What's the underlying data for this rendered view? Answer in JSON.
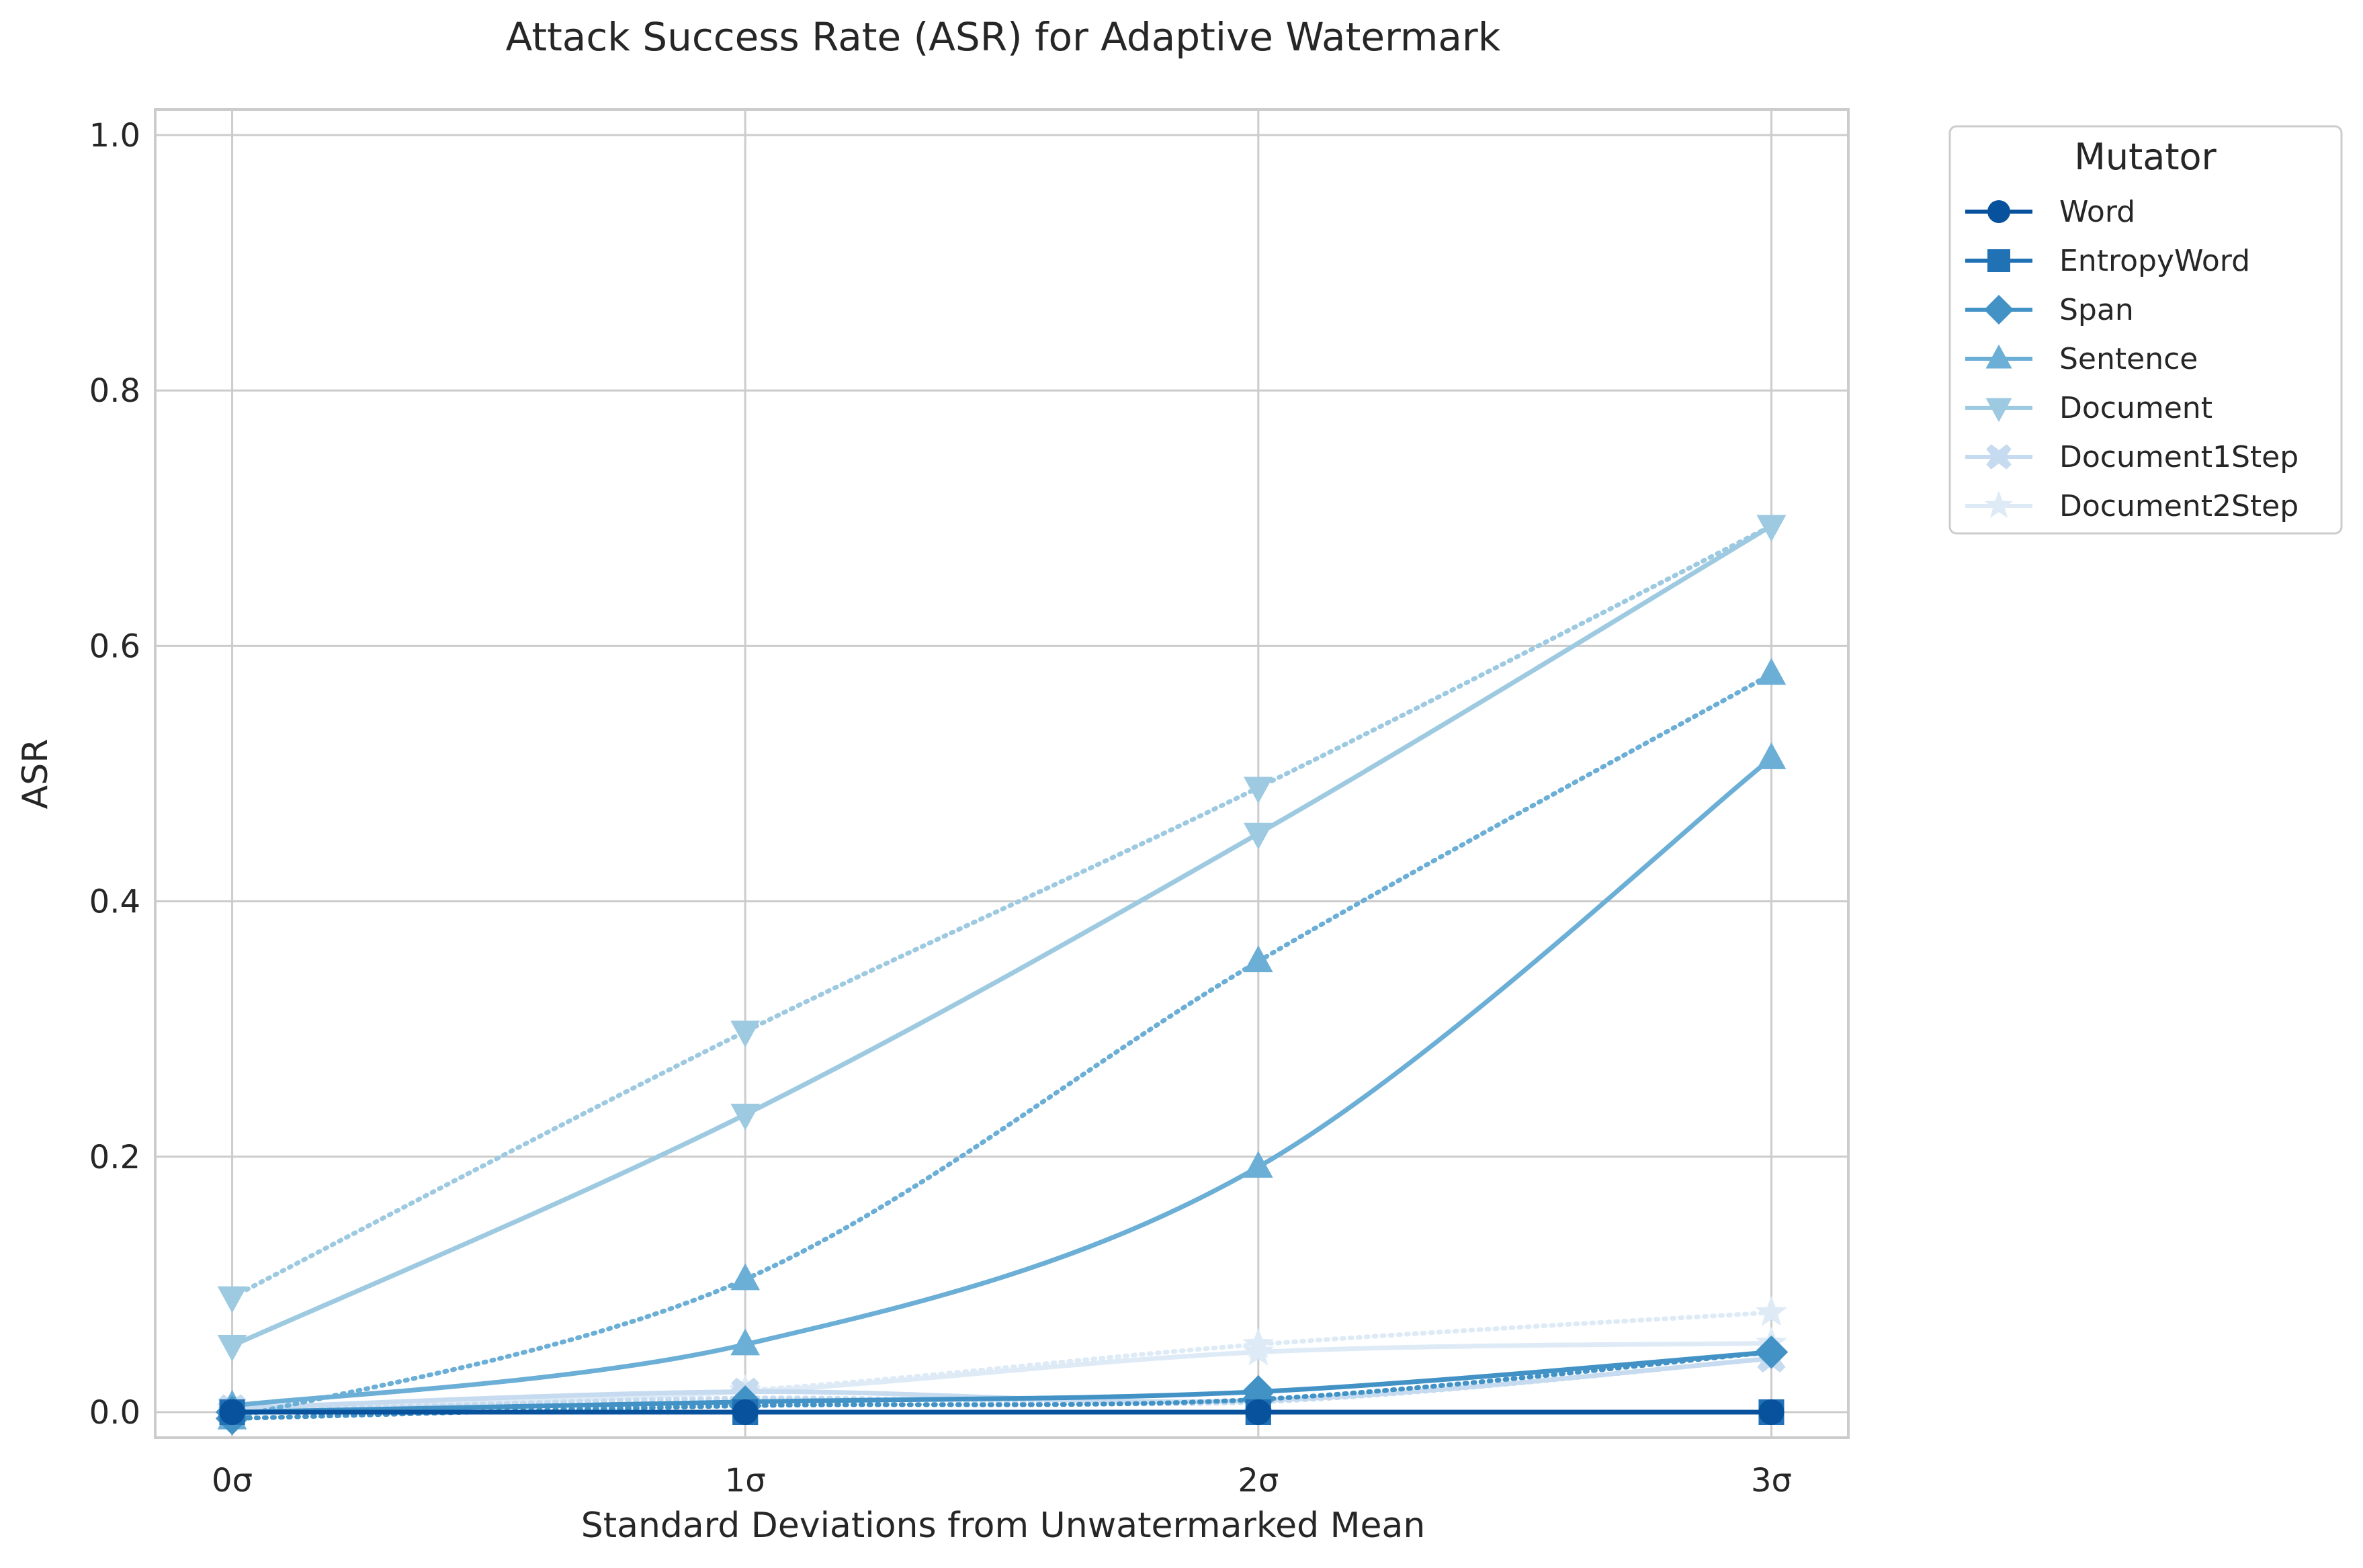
{
  "chart_data": {
    "type": "line",
    "title": "Attack Success Rate (ASR) for Adaptive Watermark",
    "xlabel": "Standard Deviations from Unwatermarked Mean",
    "ylabel": "ASR",
    "categories": [
      "0σ",
      "1σ",
      "2σ",
      "3σ"
    ],
    "x": [
      0,
      1,
      2,
      3
    ],
    "ylim": [
      -0.02,
      1.02
    ],
    "yticks": [
      0.0,
      0.2,
      0.4,
      0.6,
      0.8,
      1.0
    ],
    "yticklabels": [
      "0.0",
      "0.2",
      "0.4",
      "0.6",
      "0.8",
      "1.0"
    ],
    "grid": true,
    "legend": {
      "title": "Mutator",
      "placement": "outside upper right"
    },
    "series": [
      {
        "name": "Word",
        "marker": "circle",
        "color": "#08519c",
        "values": [
          0.0,
          0.0,
          0.0,
          0.0
        ],
        "dotted_values": [
          0.0,
          0.0,
          0.0,
          0.0
        ]
      },
      {
        "name": "EntropyWord",
        "marker": "square",
        "color": "#2171b5",
        "values": [
          0.0,
          0.0,
          0.0,
          0.0
        ],
        "dotted_values": [
          0.0,
          0.0,
          0.0,
          0.0
        ]
      },
      {
        "name": "Span",
        "marker": "diamond",
        "color": "#4292c6",
        "values": [
          0.0,
          0.008,
          0.016,
          0.047
        ],
        "dotted_values": [
          -0.005,
          0.005,
          0.01,
          0.047
        ]
      },
      {
        "name": "Sentence",
        "marker": "triangle-up",
        "color": "#6baed6",
        "values": [
          0.005,
          0.053,
          0.192,
          0.512
        ],
        "dotted_values": [
          -0.005,
          0.104,
          0.353,
          0.578
        ]
      },
      {
        "name": "Document",
        "marker": "triangle-down",
        "color": "#9ecae1",
        "values": [
          0.052,
          0.233,
          0.453,
          0.694
        ],
        "dotted_values": [
          0.09,
          0.298,
          0.489,
          0.694
        ]
      },
      {
        "name": "Document1Step",
        "marker": "x-filled",
        "color": "#c6dbef",
        "values": [
          0.003,
          0.016,
          0.009,
          0.042
        ],
        "dotted_values": [
          0.0,
          0.011,
          0.008,
          0.042
        ]
      },
      {
        "name": "Document2Step",
        "marker": "star",
        "color": "#deebf7",
        "values": [
          0.002,
          0.016,
          0.047,
          0.054
        ],
        "dotted_values": [
          0.0,
          0.017,
          0.053,
          0.078
        ]
      }
    ]
  }
}
